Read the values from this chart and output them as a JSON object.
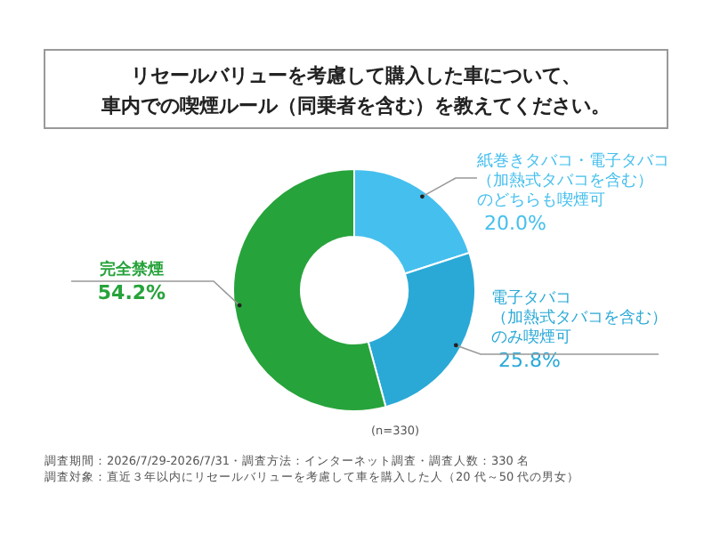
{
  "chart_data": {
    "type": "donut",
    "title": "リセールバリューを考慮して購入した車について、車内での喫煙ルール（同乗者を含む）を教えてください。",
    "categories": [
      "紙巻きタバコ・電子タバコ（加熱式タバコを含む）のどちらも喫煙可",
      "電子タバコ（加熱式タバコを含む）のみ喫煙可",
      "完全禁煙"
    ],
    "values": [
      20.0,
      25.8,
      54.2
    ],
    "value_labels": [
      "20.0%",
      "25.8%",
      "54.2%"
    ],
    "colors": [
      "#45bfee",
      "#2aa9d7",
      "#27a33b"
    ],
    "annotations": [
      "(n=330)",
      "調査期間：2026/7/29-2026/7/31・調査方法：インターネット調査・調査人数：330 名",
      "調査対象：直近３年以内にリセールバリューを考慮して車を購入した人（20 代～50 代の男女）"
    ]
  }
}
